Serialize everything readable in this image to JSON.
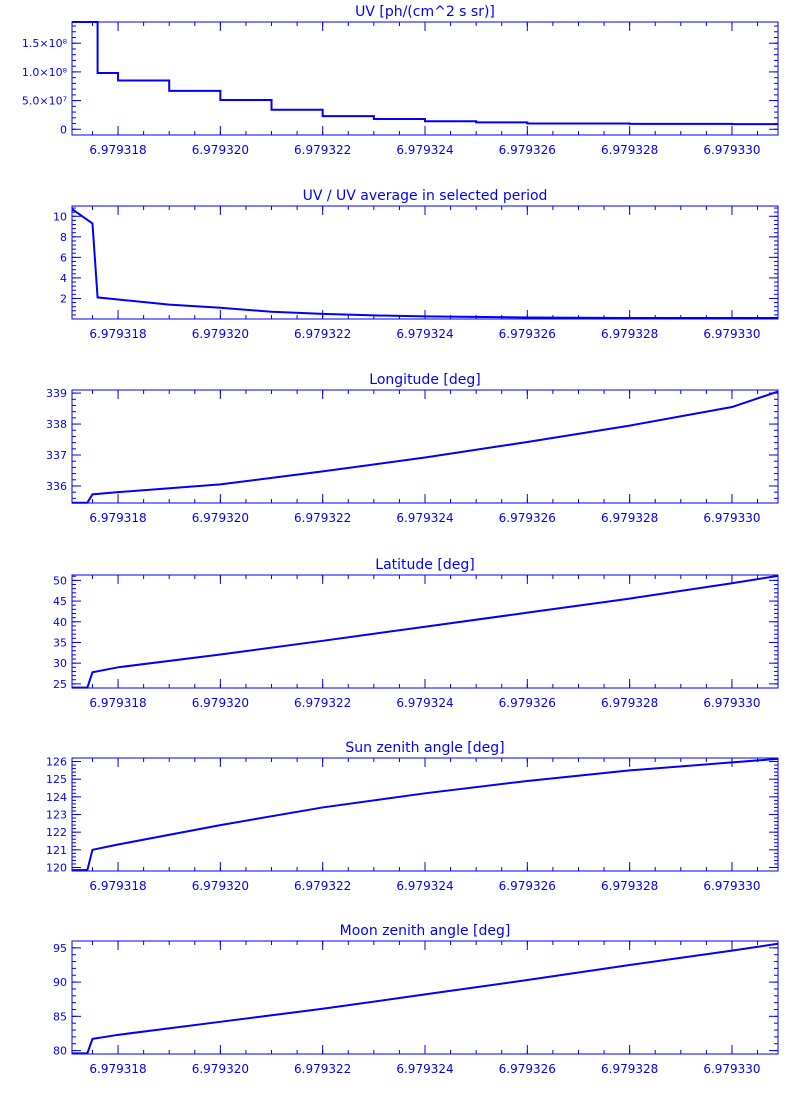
{
  "colors": {
    "foreground": "#0000ff",
    "background": "#ffffff"
  },
  "x_axis": {
    "range": [
      6.9793171,
      6.9793309
    ],
    "tick_values": [
      6.979318,
      6.97932,
      6.979322,
      6.979324,
      6.979326,
      6.979328,
      6.97933
    ],
    "tick_labels": [
      "6.979318",
      "6.979320",
      "6.979322",
      "6.979324",
      "6.979326",
      "6.979328",
      "6.979330"
    ]
  },
  "chart_data": [
    {
      "type": "line",
      "title": "UV [ph/(cm^2 s sr)]",
      "xlabel": "",
      "ylabel": "",
      "ylim": [
        -10000000.0,
        187000000.0
      ],
      "y_ticks": [
        {
          "value": 0,
          "label": "0"
        },
        {
          "value": 50000000.0,
          "label": "5.0×10⁷"
        },
        {
          "value": 100000000.0,
          "label": "1.0×10⁸"
        },
        {
          "value": 150000000.0,
          "label": "1.5×10⁸"
        }
      ],
      "grid": false,
      "step": true,
      "series": [
        {
          "x": [
            6.9793171,
            6.9793173,
            6.9793175,
            6.9793176,
            6.979318,
            6.979319,
            6.97932,
            6.979321,
            6.979322,
            6.979323,
            6.979324,
            6.979325,
            6.979326,
            6.979328,
            6.97933,
            6.9793309
          ],
          "y": [
            190000000.0,
            190000000.0,
            190000000.0,
            98000000.0,
            85000000.0,
            67000000.0,
            51000000.0,
            34000000.0,
            23000000.0,
            18000000.0,
            14000000.0,
            12000000.0,
            10000000.0,
            9500000.0,
            9000000.0,
            9000000.0
          ]
        }
      ]
    },
    {
      "type": "line",
      "title": "UV / UV average in selected period",
      "xlabel": "",
      "ylabel": "",
      "ylim": [
        0,
        11
      ],
      "y_ticks": [
        {
          "value": 2,
          "label": "2"
        },
        {
          "value": 4,
          "label": "4"
        },
        {
          "value": 6,
          "label": "6"
        },
        {
          "value": 8,
          "label": "8"
        },
        {
          "value": 10,
          "label": "10"
        }
      ],
      "grid": false,
      "series": [
        {
          "x": [
            6.9793171,
            6.9793175,
            6.9793176,
            6.979318,
            6.979319,
            6.97932,
            6.979321,
            6.979322,
            6.979323,
            6.979324,
            6.979326,
            6.979328,
            6.97933,
            6.9793309
          ],
          "y": [
            10.7,
            9.3,
            2.1,
            1.9,
            1.4,
            1.1,
            0.7,
            0.5,
            0.35,
            0.25,
            0.15,
            0.1,
            0.1,
            0.1
          ]
        }
      ]
    },
    {
      "type": "line",
      "title": "Longitude [deg]",
      "xlabel": "",
      "ylabel": "",
      "ylim": [
        335.45,
        339.1
      ],
      "y_ticks": [
        {
          "value": 336,
          "label": "336"
        },
        {
          "value": 337,
          "label": "337"
        },
        {
          "value": 338,
          "label": "338"
        },
        {
          "value": 339,
          "label": "339"
        }
      ],
      "grid": false,
      "series": [
        {
          "x": [
            6.9793171,
            6.9793174,
            6.9793175,
            6.979318,
            6.97932,
            6.979322,
            6.979324,
            6.979326,
            6.979328,
            6.97933,
            6.9793309
          ],
          "y": [
            335.46,
            335.46,
            335.73,
            335.8,
            336.05,
            336.47,
            336.92,
            337.42,
            337.95,
            338.55,
            339.05
          ]
        }
      ]
    },
    {
      "type": "line",
      "title": "Latitude [deg]",
      "xlabel": "",
      "ylabel": "",
      "ylim": [
        24,
        51.3
      ],
      "y_ticks": [
        {
          "value": 25,
          "label": "25"
        },
        {
          "value": 30,
          "label": "30"
        },
        {
          "value": 35,
          "label": "35"
        },
        {
          "value": 40,
          "label": "40"
        },
        {
          "value": 45,
          "label": "45"
        },
        {
          "value": 50,
          "label": "50"
        }
      ],
      "grid": false,
      "series": [
        {
          "x": [
            6.9793171,
            6.9793174,
            6.9793175,
            6.979318,
            6.97932,
            6.979322,
            6.979324,
            6.979326,
            6.979328,
            6.97933,
            6.9793309
          ],
          "y": [
            24.1,
            24.1,
            27.8,
            29.0,
            32.1,
            35.4,
            38.8,
            42.2,
            45.6,
            49.3,
            51.1
          ]
        }
      ]
    },
    {
      "type": "line",
      "title": "Sun zenith angle [deg]",
      "xlabel": "",
      "ylabel": "",
      "ylim": [
        119.8,
        126.2
      ],
      "y_ticks": [
        {
          "value": 120,
          "label": "120"
        },
        {
          "value": 121,
          "label": "121"
        },
        {
          "value": 122,
          "label": "122"
        },
        {
          "value": 123,
          "label": "123"
        },
        {
          "value": 124,
          "label": "124"
        },
        {
          "value": 125,
          "label": "125"
        },
        {
          "value": 126,
          "label": "126"
        }
      ],
      "grid": false,
      "series": [
        {
          "x": [
            6.9793171,
            6.9793174,
            6.9793175,
            6.979318,
            6.97932,
            6.979322,
            6.979324,
            6.979326,
            6.979328,
            6.97933,
            6.9793309
          ],
          "y": [
            119.85,
            119.85,
            121.0,
            121.3,
            122.4,
            123.4,
            124.2,
            124.9,
            125.5,
            125.95,
            126.15
          ]
        }
      ]
    },
    {
      "type": "line",
      "title": "Moon zenith angle [deg]",
      "xlabel": "",
      "ylabel": "",
      "ylim": [
        79.5,
        96
      ],
      "y_ticks": [
        {
          "value": 80,
          "label": "80"
        },
        {
          "value": 85,
          "label": "85"
        },
        {
          "value": 90,
          "label": "90"
        },
        {
          "value": 95,
          "label": "95"
        }
      ],
      "grid": false,
      "series": [
        {
          "x": [
            6.9793171,
            6.9793174,
            6.9793175,
            6.979318,
            6.97932,
            6.979322,
            6.979324,
            6.979326,
            6.979328,
            6.97933,
            6.9793309
          ],
          "y": [
            79.6,
            79.6,
            81.7,
            82.3,
            84.2,
            86.1,
            88.2,
            90.3,
            92.5,
            94.6,
            95.6
          ]
        }
      ]
    }
  ]
}
